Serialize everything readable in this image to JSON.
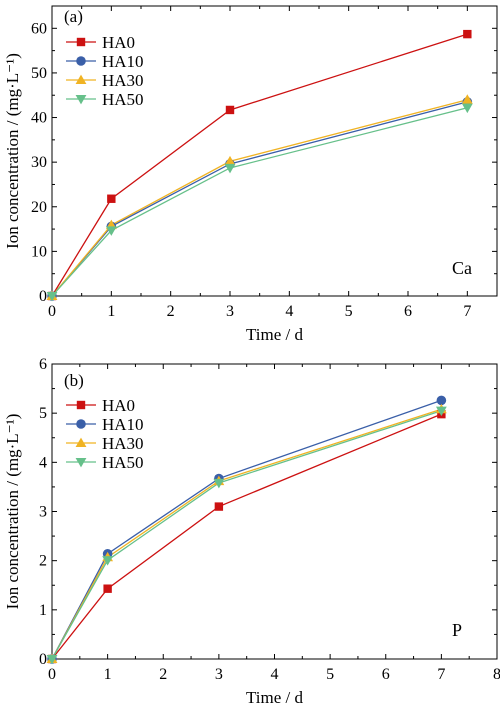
{
  "chart_data": [
    {
      "type": "line",
      "panel_label": "(a)",
      "annotation": "Ca",
      "xlabel": "Time / d",
      "ylabel": "Ion concentration / (mg·L⁻¹)",
      "xlim": [
        0,
        7.5
      ],
      "ylim": [
        0,
        65
      ],
      "xticks": [
        0,
        1,
        2,
        3,
        4,
        5,
        6,
        7
      ],
      "yticks": [
        0,
        10,
        20,
        30,
        40,
        50,
        60
      ],
      "x": [
        0,
        1,
        3,
        7
      ],
      "legend_position": "top-left",
      "series": [
        {
          "name": "HA0",
          "values": [
            0,
            21.8,
            41.7,
            58.7
          ],
          "color": "#cc1111",
          "marker": "square"
        },
        {
          "name": "HA10",
          "values": [
            0,
            15.6,
            29.6,
            43.5
          ],
          "color": "#3a5fa8",
          "marker": "circle"
        },
        {
          "name": "HA30",
          "values": [
            0,
            15.9,
            30.2,
            44.0
          ],
          "color": "#f0b323",
          "marker": "triangle-up"
        },
        {
          "name": "HA50",
          "values": [
            0,
            14.7,
            28.7,
            42.2
          ],
          "color": "#66c08a",
          "marker": "triangle-down"
        }
      ]
    },
    {
      "type": "line",
      "panel_label": "(b)",
      "annotation": "P",
      "xlabel": "Time / d",
      "ylabel": "Ion concentration / (mg·L⁻¹)",
      "xlim": [
        0,
        8
      ],
      "ylim": [
        0,
        6
      ],
      "xticks": [
        0,
        1,
        2,
        3,
        4,
        5,
        6,
        7,
        8
      ],
      "yticks": [
        0,
        1,
        2,
        3,
        4,
        5,
        6
      ],
      "x": [
        0,
        1,
        3,
        7
      ],
      "legend_position": "top-left",
      "series": [
        {
          "name": "HA0",
          "values": [
            0,
            1.43,
            3.1,
            4.98
          ],
          "color": "#cc1111",
          "marker": "square"
        },
        {
          "name": "HA10",
          "values": [
            0,
            2.14,
            3.67,
            5.26
          ],
          "color": "#3a5fa8",
          "marker": "circle"
        },
        {
          "name": "HA30",
          "values": [
            0,
            2.07,
            3.62,
            5.08
          ],
          "color": "#f0b323",
          "marker": "triangle-up"
        },
        {
          "name": "HA50",
          "values": [
            0,
            2.01,
            3.58,
            5.05
          ],
          "color": "#66c08a",
          "marker": "triangle-down"
        }
      ]
    }
  ]
}
